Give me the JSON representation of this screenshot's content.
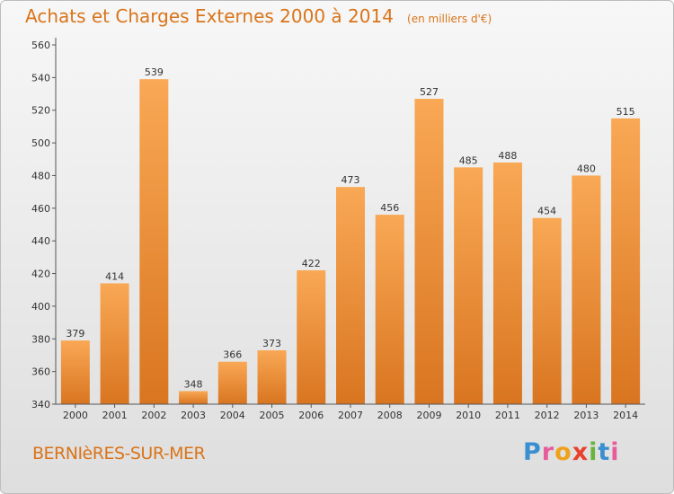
{
  "header": {
    "title": "Achats et Charges Externes 2000 à 2014",
    "unit": "(en milliers d'€)"
  },
  "footer": {
    "commune": "BERNIèRES-SUR-MER",
    "logo": "Proxiti"
  },
  "colors": {
    "title": "#d9741a",
    "bar_light": "#f9a855",
    "bar_dark": "#d97520",
    "axis": "#555555"
  },
  "chart_data": {
    "type": "bar",
    "title": "Achats et Charges Externes 2000 à 2014",
    "subtitle": "(en milliers d'€)",
    "xlabel": "",
    "ylabel": "",
    "categories": [
      "2000",
      "2001",
      "2002",
      "2003",
      "2004",
      "2005",
      "2006",
      "2007",
      "2008",
      "2009",
      "2010",
      "2011",
      "2012",
      "2013",
      "2014"
    ],
    "values": [
      379,
      414,
      539,
      348,
      366,
      373,
      422,
      473,
      456,
      527,
      485,
      488,
      454,
      480,
      515
    ],
    "ylim": [
      340,
      560
    ],
    "yticks": [
      340,
      360,
      380,
      400,
      420,
      440,
      460,
      480,
      500,
      520,
      540,
      560
    ],
    "grid": false,
    "legend": "none",
    "data_labels": true
  }
}
